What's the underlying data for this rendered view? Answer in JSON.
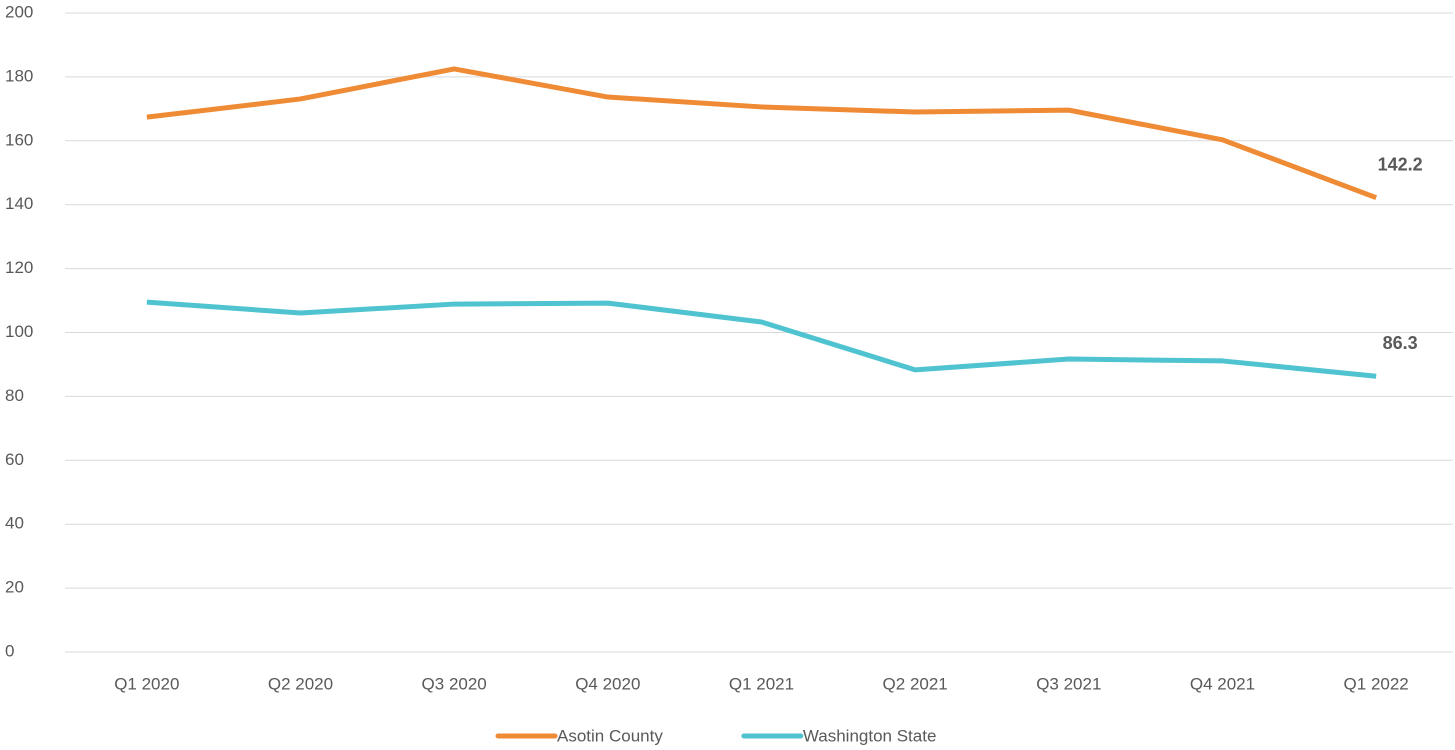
{
  "chart_data": {
    "type": "line",
    "categories": [
      "Q1 2020",
      "Q2 2020",
      "Q3 2020",
      "Q4 2020",
      "Q1 2021",
      "Q2 2021",
      "Q3 2021",
      "Q4 2021",
      "Q1 2022"
    ],
    "series": [
      {
        "name": "Asotin County",
        "color": "#ef8a35",
        "values": [
          167.4,
          173.1,
          182.5,
          173.7,
          170.6,
          169.0,
          169.6,
          160.3,
          142.2
        ]
      },
      {
        "name": "Washington State",
        "color": "#4fc3cf",
        "values": [
          109.5,
          106.1,
          108.9,
          109.2,
          103.3,
          88.3,
          91.7,
          91.1,
          86.3
        ]
      }
    ],
    "ylim": [
      0,
      200
    ],
    "yticks": [
      0,
      20,
      40,
      60,
      80,
      100,
      120,
      140,
      160,
      180,
      200
    ],
    "grid": true,
    "data_labels": "last",
    "legend": "bottom"
  }
}
